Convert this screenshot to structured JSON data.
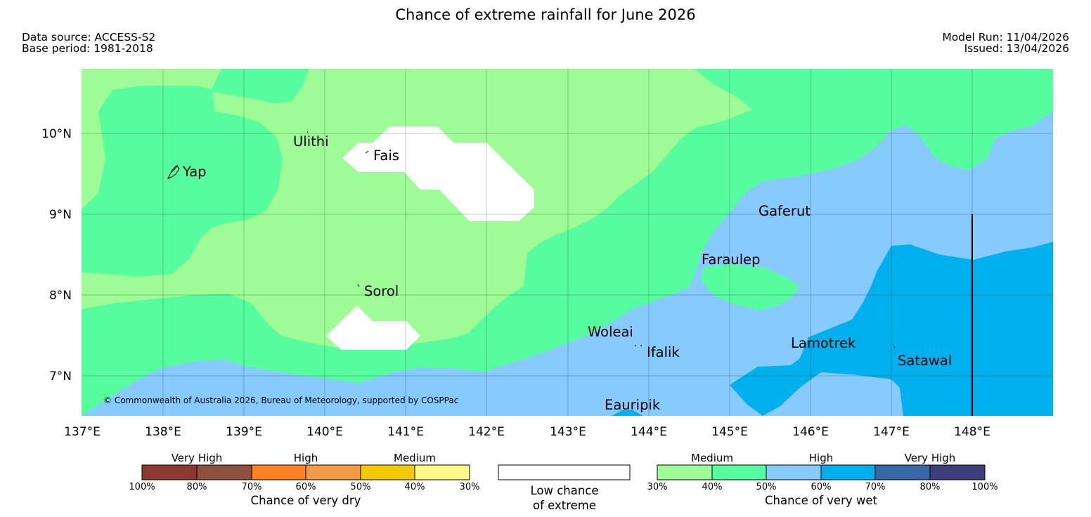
{
  "header": {
    "title": "Chance of extreme rainfall for June 2026",
    "data_source": "Data source: ACCESS-S2",
    "base_period": "Base period: 1981-2018",
    "model_run": "Model Run: 11/04/2026",
    "issued": "Issued: 13/04/2026"
  },
  "map": {
    "copyright": "© Commonwealth of Australia 2026, Bureau of Meteorology, supported by COSPPac",
    "lat_labels": [
      "10°N",
      "9°N",
      "8°N",
      "7°N"
    ],
    "lon_labels": [
      "137°E",
      "138°E",
      "139°E",
      "140°E",
      "141°E",
      "142°E",
      "143°E",
      "144°E",
      "145°E",
      "146°E",
      "147°E",
      "148°E"
    ],
    "places": {
      "yap": "Yap",
      "ulithi": "Ulithi",
      "fais": "Fais",
      "sorol": "Sorol",
      "gaferut": "Gaferut",
      "faraulep": "Faraulep",
      "woleai": "Woleai",
      "ifalik": "Ifalik",
      "lamotrek": "Lamotrek",
      "satawal": "Satawal",
      "eauripik": "Eauripik"
    },
    "colors": {
      "wet_medium_30_40": "#9dfc96",
      "wet_medium_40_50": "#56fc9e",
      "wet_high_50_60": "#87cafd",
      "wet_high_60_70": "#00b0ed",
      "low_chance": "#ffffff"
    }
  },
  "legend": {
    "dry": {
      "caption": "Chance of very dry",
      "groups": [
        "Very High",
        "High",
        "Medium"
      ],
      "ticks": [
        "100%",
        "80%",
        "70%",
        "60%",
        "50%",
        "40%",
        "30%"
      ],
      "colors": [
        "#8b3a32",
        "#8e5140",
        "#fd8025",
        "#f19a47",
        "#f2c900",
        "#fdf989"
      ]
    },
    "low": {
      "caption_line1": "Low chance",
      "caption_line2": "of extreme"
    },
    "wet": {
      "caption": "Chance of very wet",
      "groups": [
        "Medium",
        "High",
        "Very High"
      ],
      "ticks": [
        "30%",
        "40%",
        "50%",
        "60%",
        "70%",
        "80%",
        "100%"
      ],
      "colors": [
        "#9dfc96",
        "#56fc9e",
        "#87cafd",
        "#00b0ed",
        "#3666a4",
        "#3d3f7b"
      ]
    }
  }
}
